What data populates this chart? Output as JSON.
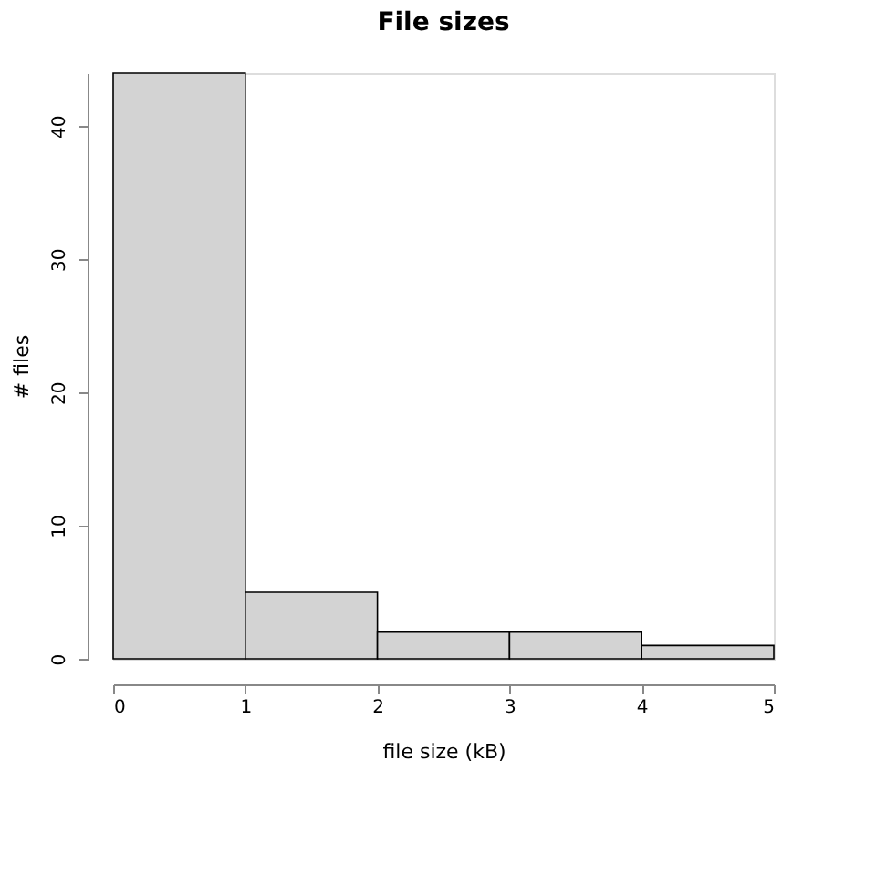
{
  "chart_data": {
    "type": "histogram",
    "title": "File sizes",
    "xlabel": "file size (kB)",
    "ylabel": "# files",
    "bins": [
      0,
      1,
      2,
      3,
      4,
      5
    ],
    "values": [
      44,
      5,
      2,
      2,
      1
    ],
    "color": "#d3d3d3",
    "xlim": [
      0,
      5
    ],
    "xticks": [
      0,
      1,
      2,
      3,
      4,
      5
    ],
    "ylim": [
      0,
      44
    ],
    "yticks": [
      0,
      10,
      20,
      30,
      40
    ],
    "grid": false
  }
}
